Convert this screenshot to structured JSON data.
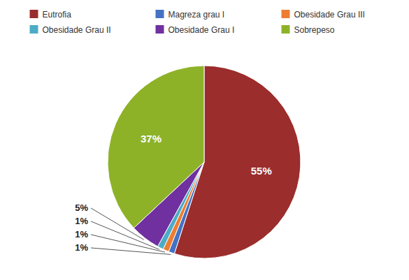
{
  "chart_data": {
    "type": "pie",
    "categories": [
      "Eutrofia",
      "Magreza grau I",
      "Obesidade Grau III",
      "Obesidade Grau II",
      "Obesidade Grau I",
      "Sobrepeso"
    ],
    "values": [
      55,
      1,
      1,
      1,
      5,
      37
    ],
    "value_labels": [
      "55%",
      "1%",
      "1%",
      "1%",
      "5%",
      "37%"
    ],
    "colors": [
      "#9B2D2D",
      "#4472C4",
      "#ED7D31",
      "#4BACC6",
      "#7030A0",
      "#8DB228"
    ],
    "data_labels": true,
    "legend": "top"
  }
}
